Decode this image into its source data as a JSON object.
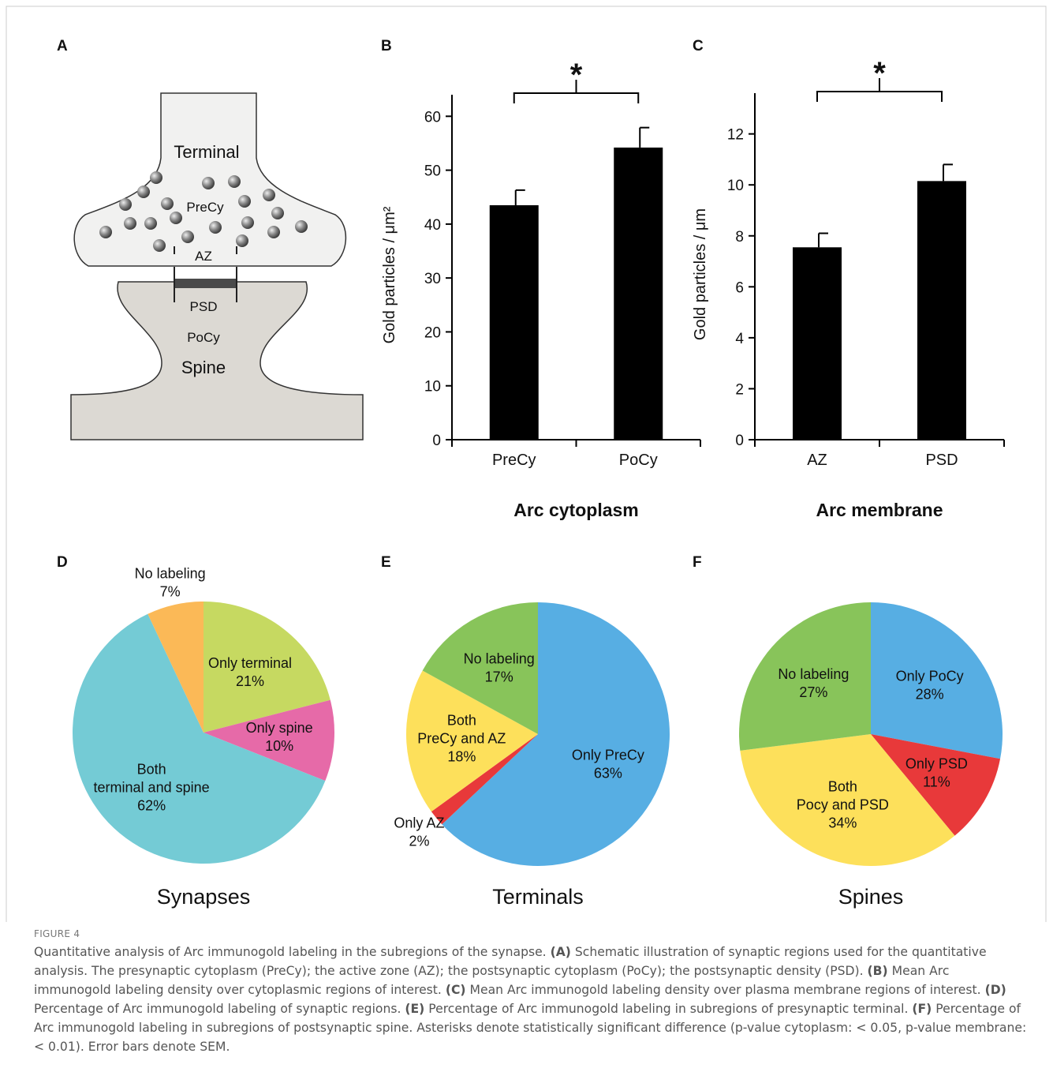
{
  "diagram": {
    "panel": "A",
    "labels": {
      "terminal": "Terminal",
      "precy": "PreCy",
      "az": "AZ",
      "psd": "PSD",
      "pocy": "PoCy",
      "spine": "Spine"
    }
  },
  "chart_data": [
    {
      "type": "bar",
      "panel": "B",
      "xlabel": "Arc cytoplasm",
      "ylabel": "Gold particles / μm²",
      "categories": [
        "PreCy",
        "PoCy"
      ],
      "values": [
        43.5,
        54.2
      ],
      "errors": [
        2.8,
        3.7
      ],
      "color": "#000000",
      "ylim": [
        0,
        64
      ],
      "yticks": [
        0,
        10,
        20,
        30,
        40,
        50,
        60
      ],
      "annotation": "*"
    },
    {
      "type": "bar",
      "panel": "C",
      "xlabel": "Arc membrane",
      "ylabel": "Gold particles / μm",
      "categories": [
        "AZ",
        "PSD"
      ],
      "values": [
        7.55,
        10.15
      ],
      "errors": [
        0.55,
        0.65
      ],
      "color": "#000000",
      "ylim": [
        0,
        13.6
      ],
      "yticks": [
        0,
        2,
        4,
        6,
        8,
        10,
        12
      ],
      "annotation": "*"
    },
    {
      "type": "pie",
      "panel": "D",
      "title": "Synapses",
      "categories": [
        "Only terminal",
        "Only spine",
        "Both\nterminal and spine",
        "No labeling"
      ],
      "values": [
        21,
        10,
        62,
        7
      ],
      "value_labels": [
        "21%",
        "10%",
        "62%",
        "7%"
      ],
      "colors": [
        "#c6d961",
        "#e66aa8",
        "#74cbd5",
        "#fbb957"
      ]
    },
    {
      "type": "pie",
      "panel": "E",
      "title": "Terminals",
      "categories": [
        "Only PreCy",
        "Only AZ",
        "Both\nPreCy and AZ",
        "No labeling"
      ],
      "values": [
        63,
        2,
        18,
        17
      ],
      "value_labels": [
        "63%",
        "2%",
        "18%",
        "17%"
      ],
      "colors": [
        "#57aee3",
        "#e8393a",
        "#fde05b",
        "#88c45a"
      ]
    },
    {
      "type": "pie",
      "panel": "F",
      "title": "Spines",
      "categories": [
        "Only PoCy",
        "Only PSD",
        "Both\nPocy and PSD",
        "No labeling"
      ],
      "values": [
        28,
        11,
        34,
        27
      ],
      "value_labels": [
        "28%",
        "11%",
        "34%",
        "27%"
      ],
      "colors": [
        "#57aee3",
        "#e8393a",
        "#fde05b",
        "#88c45a"
      ]
    }
  ],
  "caption": {
    "label": "FIGURE 4",
    "intro": "Quantitative analysis of Arc immunogold labeling in the subregions of the synapse.",
    "items": [
      {
        "label": "(A)",
        "text": "Schematic illustration of synaptic regions used for the quantitative analysis. The presynaptic cytoplasm (PreCy); the active zone (AZ); the postsynaptic cytoplasm (PoCy); the postsynaptic density (PSD)."
      },
      {
        "label": "(B)",
        "text": "Mean Arc immunogold labeling density over cytoplasmic regions of interest."
      },
      {
        "label": "(C)",
        "text": "Mean Arc immunogold labeling density over plasma membrane regions of interest."
      },
      {
        "label": "(D)",
        "text": "Percentage of Arc immunogold labeling of synaptic regions."
      },
      {
        "label": "(E)",
        "text": "Percentage of Arc immunogold labeling in subregions of presynaptic terminal."
      },
      {
        "label": "(F)",
        "text": "Percentage of Arc immunogold labeling in subregions of postsynaptic spine. Asterisks denote statistically significant difference (p-value cytoplasm: < 0.05, p-value membrane: < 0.01). Error bars denote SEM."
      }
    ]
  }
}
